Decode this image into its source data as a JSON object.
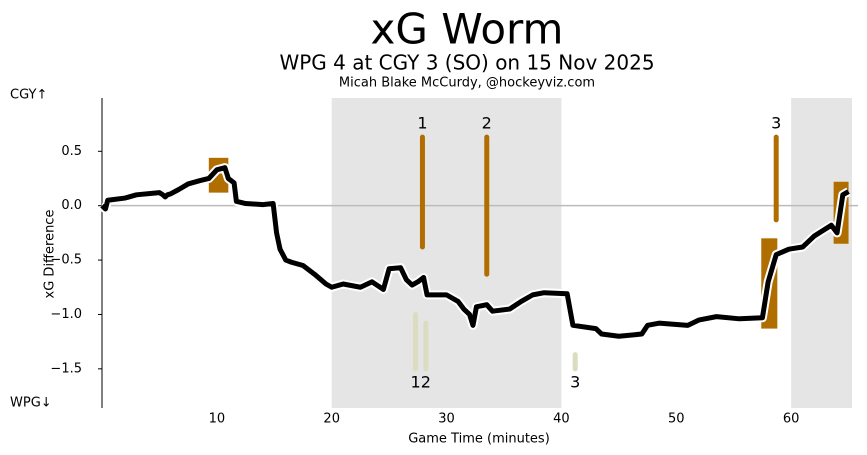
{
  "chart_data": {
    "type": "line",
    "title": "xG Worm",
    "subtitle": "WPG 4 at CGY 3 (SO) on 15 Nov 2025",
    "credit": "Micah Blake McCurdy, @hockeyviz.com",
    "x_label": "Game Time (minutes)",
    "y_label": "xG Difference",
    "y_top_label": "CGY↑",
    "y_bottom_label": "WPG↓",
    "xlim": [
      0,
      65.3
    ],
    "ylim": [
      -1.86,
      0.99
    ],
    "xticks": [
      10,
      20,
      30,
      40,
      50,
      60
    ],
    "yticks": [
      0.5,
      {
        "value": 0,
        "label": "0.0"
      },
      {
        "value": -0.5,
        "label": "−0.5"
      },
      {
        "value": -1,
        "label": "−1.0"
      },
      {
        "value": -1.5,
        "label": "−1.5"
      }
    ],
    "zero_line": true,
    "shaded_x_ranges": [
      [
        20,
        40
      ],
      [
        60,
        65.3
      ]
    ],
    "highlight_boxes": [
      {
        "x": [
          9.3,
          11.0
        ],
        "y": [
          0.12,
          0.44
        ]
      },
      {
        "x": [
          57.4,
          58.8
        ],
        "y": [
          -1.13,
          -0.3
        ]
      },
      {
        "x": [
          63.7,
          65.0
        ],
        "y": [
          -0.35,
          0.22
        ]
      }
    ],
    "box_color": "#b06e00",
    "series": [
      {
        "color": "#000000",
        "x": [
          0,
          0.3,
          0.5,
          2,
          3,
          5,
          5.3,
          5.5,
          5.7,
          6,
          6.7,
          7.5,
          8.5,
          9.3,
          10,
          10.7,
          11,
          11.5,
          11.7,
          12.5,
          14,
          14.9,
          15.2,
          15.5,
          16,
          16.5,
          17.5,
          18.5,
          19.5,
          20,
          21,
          22.5,
          23.5,
          24.5,
          25,
          26,
          26.5,
          27,
          27.5,
          28,
          28.3,
          30,
          31,
          31.5,
          32,
          32.3,
          32.6,
          33.5,
          34,
          35.5,
          36.5,
          37.5,
          38.5,
          40.5,
          41,
          43,
          43.5,
          45,
          47,
          47.5,
          48.5,
          51,
          52,
          53.5,
          55.5,
          57.5,
          58,
          58.7,
          59.8,
          61,
          62,
          63.5,
          64,
          64.5,
          65
        ],
        "values": [
          0,
          -0.03,
          0.05,
          0.07,
          0.1,
          0.12,
          0.1,
          0.08,
          0.1,
          0.11,
          0.15,
          0.2,
          0.23,
          0.25,
          0.33,
          0.35,
          0.25,
          0.21,
          0.04,
          0.02,
          0.01,
          0.02,
          -0.25,
          -0.4,
          -0.5,
          -0.52,
          -0.55,
          -0.63,
          -0.72,
          -0.75,
          -0.72,
          -0.75,
          -0.7,
          -0.77,
          -0.58,
          -0.57,
          -0.68,
          -0.73,
          -0.7,
          -0.66,
          -0.82,
          -0.82,
          -0.88,
          -0.95,
          -1.0,
          -1.1,
          -0.93,
          -0.91,
          -0.97,
          -0.95,
          -0.88,
          -0.82,
          -0.8,
          -0.81,
          -1.1,
          -1.13,
          -1.18,
          -1.2,
          -1.18,
          -1.1,
          -1.08,
          -1.1,
          -1.05,
          -1.02,
          -1.04,
          -1.03,
          -0.7,
          -0.45,
          -0.4,
          -0.38,
          -0.28,
          -0.18,
          -0.25,
          0.1,
          0.13
        ]
      }
    ],
    "goals": [
      {
        "label": "1",
        "x": 27.9,
        "y": [
          -0.38,
          0.63
        ],
        "color": "#b06e00",
        "side": "top"
      },
      {
        "label": "2",
        "x": 33.5,
        "y": [
          -0.63,
          0.63
        ],
        "color": "#b06e00",
        "side": "top"
      },
      {
        "label": "3",
        "x": 58.7,
        "y": [
          -0.13,
          0.63
        ],
        "color": "#b06e00",
        "side": "top"
      },
      {
        "label": "1",
        "x": 27.3,
        "y": [
          -1.5,
          -1.0
        ],
        "color": "#dcdcc0",
        "side": "bottom"
      },
      {
        "label": "2",
        "x": 28.2,
        "y": [
          -1.5,
          -1.08
        ],
        "color": "#dcdcc0",
        "side": "bottom"
      },
      {
        "label": "3",
        "x": 41.2,
        "y": [
          -1.5,
          -1.37
        ],
        "color": "#dcdcc0",
        "side": "bottom"
      }
    ]
  }
}
